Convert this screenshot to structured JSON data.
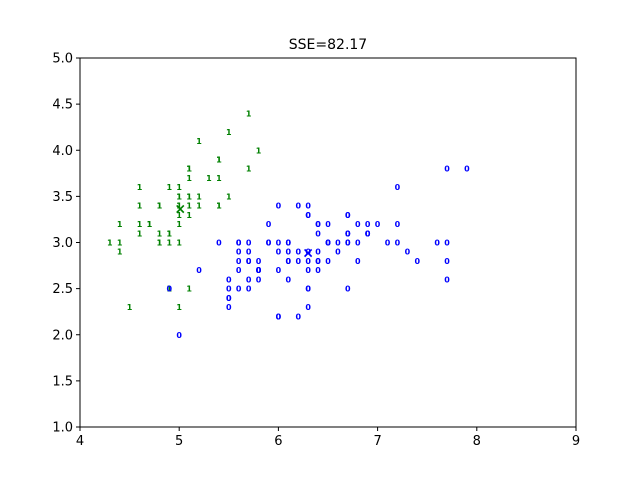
{
  "chart_data": {
    "type": "scatter",
    "title": "SSE=82.17",
    "xlabel": "",
    "ylabel": "",
    "xlim": [
      4,
      9
    ],
    "ylim": [
      1.0,
      5.0
    ],
    "xticks": [
      "4",
      "5",
      "6",
      "7",
      "8",
      "9"
    ],
    "yticks": [
      "1.0",
      "1.5",
      "2.0",
      "2.5",
      "3.0",
      "3.5",
      "4.0",
      "4.5",
      "5.0"
    ],
    "grid": false,
    "legend": "none",
    "point_marker": "cluster label text",
    "series": [
      {
        "label": "1",
        "color": "#008000",
        "points": [
          [
            5.1,
            3.5
          ],
          [
            4.9,
            3.0
          ],
          [
            4.7,
            3.2
          ],
          [
            4.6,
            3.1
          ],
          [
            5.0,
            3.6
          ],
          [
            5.4,
            3.9
          ],
          [
            4.6,
            3.4
          ],
          [
            5.0,
            3.4
          ],
          [
            4.4,
            2.9
          ],
          [
            4.9,
            3.1
          ],
          [
            5.4,
            3.7
          ],
          [
            4.8,
            3.4
          ],
          [
            4.8,
            3.0
          ],
          [
            4.3,
            3.0
          ],
          [
            5.8,
            4.0
          ],
          [
            5.7,
            4.4
          ],
          [
            5.4,
            3.9
          ],
          [
            5.1,
            3.5
          ],
          [
            5.7,
            3.8
          ],
          [
            5.1,
            3.8
          ],
          [
            5.4,
            3.4
          ],
          [
            5.1,
            3.7
          ],
          [
            4.6,
            3.6
          ],
          [
            5.1,
            3.3
          ],
          [
            4.8,
            3.4
          ],
          [
            5.0,
            3.0
          ],
          [
            5.0,
            3.4
          ],
          [
            5.2,
            3.5
          ],
          [
            5.2,
            3.4
          ],
          [
            4.7,
            3.2
          ],
          [
            4.8,
            3.1
          ],
          [
            5.4,
            3.4
          ],
          [
            5.2,
            4.1
          ],
          [
            5.5,
            4.2
          ],
          [
            4.9,
            3.1
          ],
          [
            5.0,
            3.2
          ],
          [
            5.5,
            3.5
          ],
          [
            4.9,
            3.6
          ],
          [
            4.4,
            3.0
          ],
          [
            5.1,
            3.4
          ],
          [
            5.0,
            3.5
          ],
          [
            4.5,
            2.3
          ],
          [
            4.4,
            3.2
          ],
          [
            5.0,
            3.5
          ],
          [
            5.1,
            3.8
          ],
          [
            4.8,
            3.0
          ],
          [
            5.1,
            3.8
          ],
          [
            4.6,
            3.2
          ],
          [
            5.3,
            3.7
          ],
          [
            5.0,
            3.3
          ],
          [
            4.9,
            2.5
          ],
          [
            5.0,
            2.3
          ],
          [
            5.1,
            2.5
          ]
        ]
      },
      {
        "label": "0",
        "color": "#0000ff",
        "points": [
          [
            7.0,
            3.2
          ],
          [
            6.4,
            3.2
          ],
          [
            6.9,
            3.1
          ],
          [
            5.5,
            2.3
          ],
          [
            6.5,
            2.8
          ],
          [
            5.7,
            2.8
          ],
          [
            6.3,
            3.3
          ],
          [
            6.6,
            2.9
          ],
          [
            5.2,
            2.7
          ],
          [
            5.9,
            3.0
          ],
          [
            6.0,
            2.2
          ],
          [
            6.1,
            2.9
          ],
          [
            5.6,
            2.9
          ],
          [
            6.7,
            3.1
          ],
          [
            5.6,
            3.0
          ],
          [
            5.8,
            2.7
          ],
          [
            6.2,
            2.2
          ],
          [
            5.6,
            2.5
          ],
          [
            5.9,
            3.2
          ],
          [
            6.1,
            2.8
          ],
          [
            6.3,
            2.5
          ],
          [
            6.1,
            2.8
          ],
          [
            6.4,
            2.9
          ],
          [
            6.6,
            3.0
          ],
          [
            6.8,
            2.8
          ],
          [
            6.7,
            3.0
          ],
          [
            6.0,
            2.9
          ],
          [
            5.7,
            2.6
          ],
          [
            5.5,
            2.4
          ],
          [
            5.5,
            2.4
          ],
          [
            5.8,
            2.7
          ],
          [
            6.0,
            2.7
          ],
          [
            5.4,
            3.0
          ],
          [
            6.0,
            3.4
          ],
          [
            6.7,
            3.1
          ],
          [
            6.3,
            2.3
          ],
          [
            5.6,
            3.0
          ],
          [
            5.5,
            2.5
          ],
          [
            5.5,
            2.6
          ],
          [
            6.1,
            3.0
          ],
          [
            5.8,
            2.6
          ],
          [
            5.0,
            2.0
          ],
          [
            5.6,
            2.7
          ],
          [
            5.7,
            3.0
          ],
          [
            5.7,
            2.9
          ],
          [
            6.2,
            2.9
          ],
          [
            5.7,
            2.8
          ],
          [
            6.3,
            3.3
          ],
          [
            5.8,
            2.7
          ],
          [
            7.1,
            3.0
          ],
          [
            6.3,
            2.9
          ],
          [
            6.5,
            3.0
          ],
          [
            7.6,
            3.0
          ],
          [
            4.9,
            2.5
          ],
          [
            7.3,
            2.9
          ],
          [
            6.7,
            2.5
          ],
          [
            7.2,
            3.6
          ],
          [
            6.5,
            3.2
          ],
          [
            6.4,
            2.7
          ],
          [
            6.8,
            3.0
          ],
          [
            5.7,
            2.5
          ],
          [
            5.8,
            2.8
          ],
          [
            6.4,
            3.2
          ],
          [
            6.5,
            3.0
          ],
          [
            7.7,
            3.8
          ],
          [
            7.7,
            2.6
          ],
          [
            6.0,
            2.2
          ],
          [
            6.9,
            3.2
          ],
          [
            5.6,
            2.8
          ],
          [
            7.7,
            2.8
          ],
          [
            6.3,
            2.7
          ],
          [
            6.7,
            3.3
          ],
          [
            7.2,
            3.2
          ],
          [
            6.2,
            2.8
          ],
          [
            6.1,
            3.0
          ],
          [
            6.4,
            2.8
          ],
          [
            7.2,
            3.0
          ],
          [
            7.4,
            2.8
          ],
          [
            7.9,
            3.8
          ],
          [
            6.4,
            2.8
          ],
          [
            6.3,
            2.8
          ],
          [
            6.1,
            2.6
          ],
          [
            7.7,
            3.0
          ],
          [
            6.3,
            3.4
          ],
          [
            6.4,
            3.1
          ],
          [
            6.0,
            3.0
          ],
          [
            6.9,
            3.1
          ],
          [
            6.7,
            3.1
          ],
          [
            6.9,
            3.1
          ],
          [
            5.8,
            2.7
          ],
          [
            6.8,
            3.2
          ],
          [
            6.7,
            3.3
          ],
          [
            6.7,
            3.0
          ],
          [
            6.3,
            2.5
          ],
          [
            6.5,
            3.0
          ],
          [
            6.2,
            3.4
          ],
          [
            5.9,
            3.0
          ]
        ]
      }
    ],
    "centroids": [
      {
        "label": "1",
        "marker": "×",
        "color": "#008000",
        "x": 5.01,
        "y": 3.37
      },
      {
        "label": "0",
        "marker": "×",
        "color": "#0000ff",
        "x": 6.3,
        "y": 2.89
      }
    ]
  }
}
